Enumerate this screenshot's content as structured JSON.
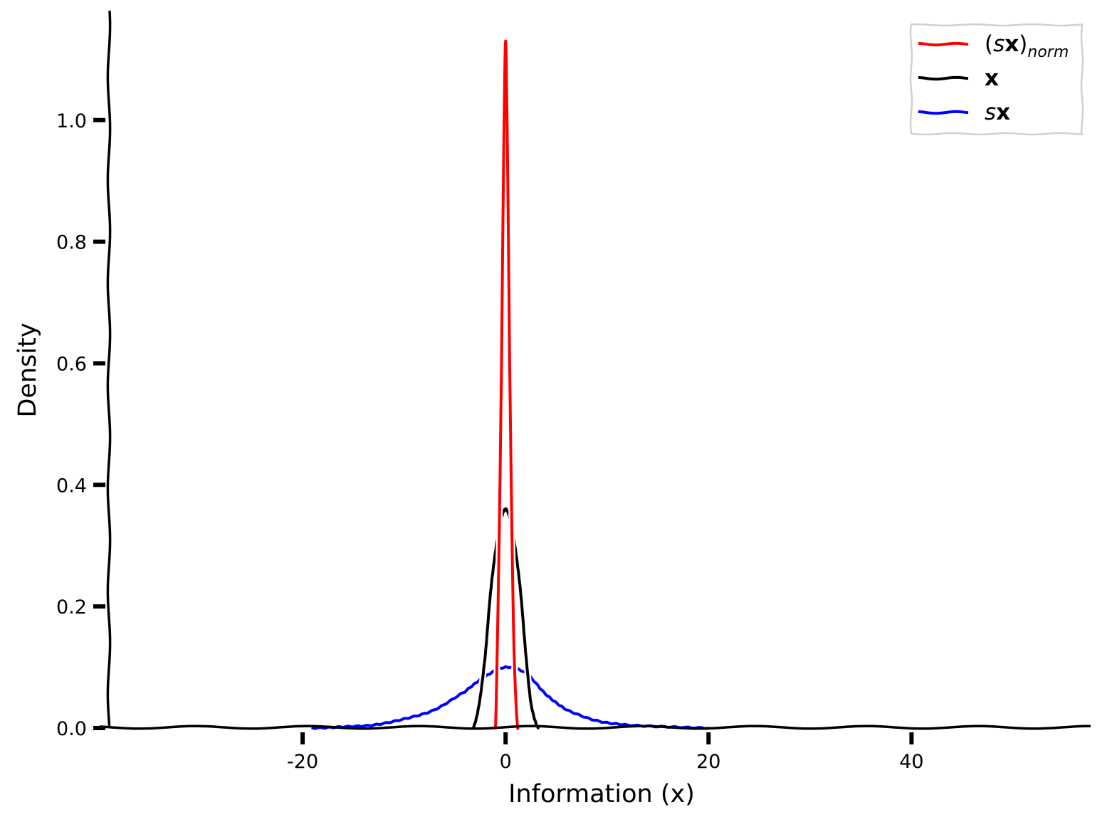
{
  "chart_data": {
    "type": "line",
    "xlabel": "Information (x)",
    "ylabel": "Density",
    "xlim": [
      -40,
      58
    ],
    "ylim": [
      0,
      1.18
    ],
    "x_ticks": [
      -20,
      0,
      20,
      40
    ],
    "x_tick_labels": [
      "-20",
      "0",
      "20",
      "40"
    ],
    "y_ticks": [
      0.0,
      0.2,
      0.4,
      0.6,
      0.8,
      1.0
    ],
    "y_tick_labels": [
      "0.0",
      "0.2",
      "0.4",
      "0.6",
      "0.8",
      "1.0"
    ],
    "grid": false,
    "legend_position": "top-right",
    "style": "xkcd",
    "series": [
      {
        "name": "(sx)_norm",
        "legend_label": {
          "prefix": "(",
          "italic": "s",
          "bold": "x",
          "suffix": ")",
          "subscript": "norm"
        },
        "color": "#ff0000",
        "x": [
          -1.0,
          -0.8,
          -0.6,
          -0.4,
          -0.25,
          -0.1,
          0.0,
          0.1,
          0.25,
          0.4,
          0.6,
          0.8,
          1.0,
          1.2
        ],
        "y": [
          0.0,
          0.15,
          0.35,
          0.6,
          0.85,
          1.05,
          1.13,
          1.05,
          0.85,
          0.6,
          0.35,
          0.15,
          0.05,
          0.0
        ]
      },
      {
        "name": "x",
        "legend_label": {
          "prefix": "",
          "italic": "",
          "bold": "x",
          "suffix": "",
          "subscript": ""
        },
        "color": "#000000",
        "x": [
          -3.2,
          -2.6,
          -2.0,
          -1.5,
          -1.0,
          -0.5,
          0.0,
          0.5,
          1.0,
          1.5,
          2.0,
          2.5,
          3.2
        ],
        "y": [
          0.0,
          0.04,
          0.12,
          0.22,
          0.29,
          0.34,
          0.36,
          0.34,
          0.29,
          0.22,
          0.12,
          0.04,
          0.0
        ]
      },
      {
        "name": "sx",
        "legend_label": {
          "prefix": "",
          "italic": "s",
          "bold": "x",
          "suffix": "",
          "subscript": ""
        },
        "color": "#0000ff",
        "x": [
          -19,
          -16,
          -13,
          -10,
          -7,
          -4,
          -2,
          0,
          2,
          4,
          6,
          9,
          12,
          16,
          20
        ],
        "y": [
          0.0,
          0.002,
          0.005,
          0.015,
          0.03,
          0.06,
          0.085,
          0.1,
          0.09,
          0.055,
          0.03,
          0.012,
          0.005,
          0.002,
          0.0
        ]
      }
    ]
  }
}
